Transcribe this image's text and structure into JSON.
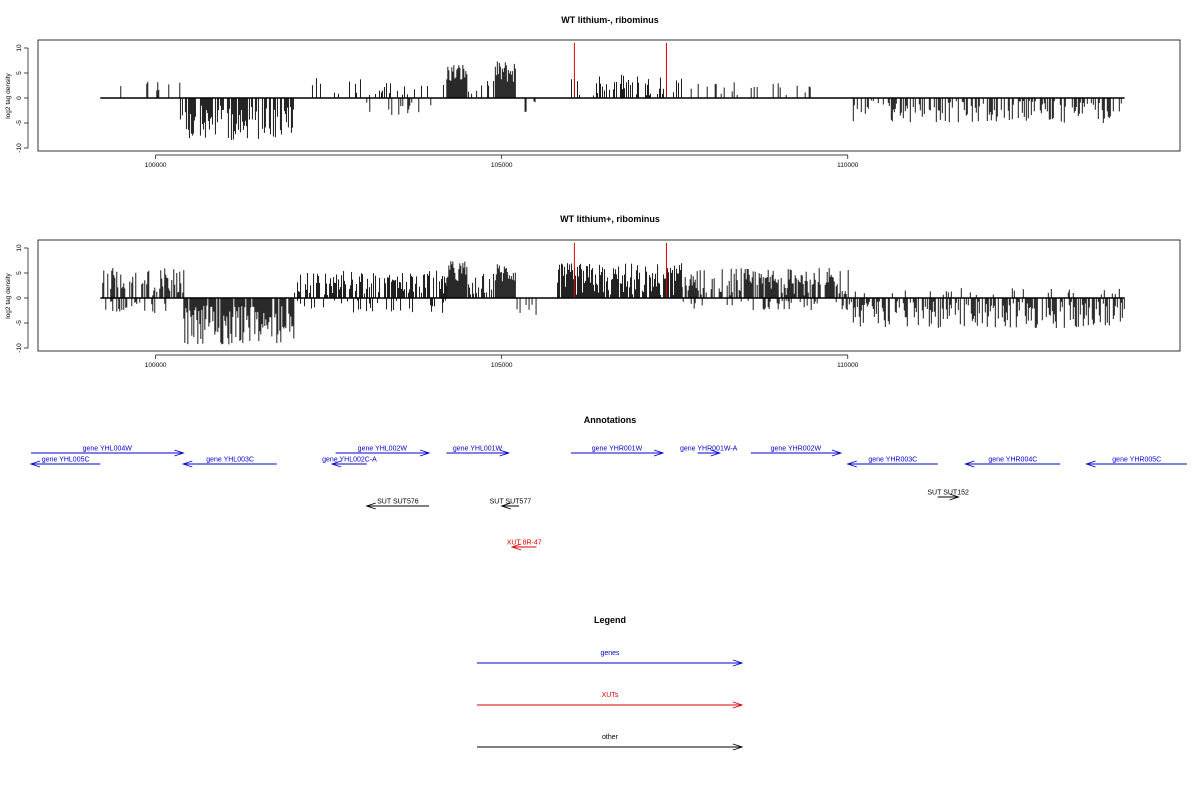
{
  "chart_data": [
    {
      "type": "bar",
      "title": "WT lithium-, ribominus",
      "ylabel": "log2 tag density",
      "xlim": [
        98300,
        114800
      ],
      "ylim": [
        -10,
        12
      ],
      "yticks": [
        -10,
        -5,
        0,
        5,
        10
      ],
      "xticks": [
        100000,
        105000,
        110000
      ],
      "grid": false,
      "segments": [
        {
          "from": 99200,
          "to": 100350,
          "min": 0.5,
          "max": 4.5,
          "density": 0.15,
          "sign": 1
        },
        {
          "from": 100350,
          "to": 102000,
          "min": 1.5,
          "max": 8.5,
          "density": 0.7,
          "sign": -1
        },
        {
          "from": 102200,
          "to": 104200,
          "min": 0.5,
          "max": 4.0,
          "density": 0.2,
          "sign": 1
        },
        {
          "from": 103000,
          "to": 104000,
          "min": 0.5,
          "max": 3.5,
          "density": 0.12,
          "sign": -1
        },
        {
          "from": 104200,
          "to": 104500,
          "min": 3.0,
          "max": 7.0,
          "density": 1.0,
          "sign": 1
        },
        {
          "from": 104500,
          "to": 104900,
          "min": 0.5,
          "max": 3.5,
          "density": 0.35,
          "sign": 1
        },
        {
          "from": 104900,
          "to": 105200,
          "min": 3.0,
          "max": 7.5,
          "density": 1.0,
          "sign": 1
        },
        {
          "from": 105200,
          "to": 105500,
          "min": 0.5,
          "max": 3.0,
          "density": 0.25,
          "sign": -1
        },
        {
          "from": 106000,
          "to": 107600,
          "min": 0.5,
          "max": 5.0,
          "density": 0.35,
          "sign": 1
        },
        {
          "from": 107600,
          "to": 109600,
          "min": 0.5,
          "max": 3.5,
          "density": 0.15,
          "sign": 1
        },
        {
          "from": 110000,
          "to": 114000,
          "min": 0.5,
          "max": 5.0,
          "density": 0.45,
          "sign": -1
        }
      ],
      "markers": [
        106050,
        107380
      ],
      "marker_top": 11
    },
    {
      "type": "bar",
      "title": "WT lithium+, ribominus",
      "ylabel": "log2 tag density",
      "xlim": [
        98300,
        114800
      ],
      "ylim": [
        -10,
        12
      ],
      "yticks": [
        -10,
        -5,
        0,
        5,
        10
      ],
      "xticks": [
        100000,
        105000,
        110000
      ],
      "grid": false,
      "segments": [
        {
          "from": 99200,
          "to": 100400,
          "min": 0.5,
          "max": 6.0,
          "density": 0.6,
          "sign": 1
        },
        {
          "from": 99200,
          "to": 100200,
          "min": 0.5,
          "max": 3.0,
          "density": 0.3,
          "sign": -1
        },
        {
          "from": 100400,
          "to": 102000,
          "min": 1.5,
          "max": 9.5,
          "density": 0.9,
          "sign": -1
        },
        {
          "from": 102000,
          "to": 104200,
          "min": 0.5,
          "max": 5.5,
          "density": 0.6,
          "sign": 1
        },
        {
          "from": 102000,
          "to": 104200,
          "min": 0.5,
          "max": 3.0,
          "density": 0.2,
          "sign": -1
        },
        {
          "from": 104200,
          "to": 104500,
          "min": 3.0,
          "max": 7.5,
          "density": 1.0,
          "sign": 1
        },
        {
          "from": 104500,
          "to": 104900,
          "min": 0.5,
          "max": 5.0,
          "density": 0.7,
          "sign": 1
        },
        {
          "from": 104900,
          "to": 105200,
          "min": 3.0,
          "max": 7.0,
          "density": 1.0,
          "sign": 1
        },
        {
          "from": 105200,
          "to": 105500,
          "min": 0.5,
          "max": 4.0,
          "density": 0.4,
          "sign": -1
        },
        {
          "from": 105800,
          "to": 107600,
          "min": 0.5,
          "max": 7.0,
          "density": 0.9,
          "sign": 1
        },
        {
          "from": 107600,
          "to": 110000,
          "min": 0.5,
          "max": 6.0,
          "density": 0.7,
          "sign": 1
        },
        {
          "from": 107600,
          "to": 110000,
          "min": 0.5,
          "max": 2.5,
          "density": 0.2,
          "sign": -1
        },
        {
          "from": 110000,
          "to": 114000,
          "min": 0.5,
          "max": 6.0,
          "density": 0.6,
          "sign": -1
        },
        {
          "from": 110000,
          "to": 114000,
          "min": 0.5,
          "max": 2.0,
          "density": 0.1,
          "sign": 1
        }
      ],
      "markers": [
        106050,
        107380
      ],
      "marker_top": 11
    }
  ],
  "annotations": {
    "title": "Annotations",
    "colors": {
      "gene": "#0000cc",
      "xut": "#dd0000",
      "other": "#000000"
    },
    "items": [
      {
        "label": "gene YHL005C",
        "kind": "gene",
        "start": 98200,
        "end": 99200,
        "strand": "-",
        "row": 1
      },
      {
        "label": "gene YHL004W",
        "kind": "gene",
        "start": 98200,
        "end": 100400,
        "strand": "+",
        "row": 0
      },
      {
        "label": "gene YHL003C",
        "kind": "gene",
        "start": 100400,
        "end": 101750,
        "strand": "-",
        "row": 1
      },
      {
        "label": "gene YHL002W",
        "kind": "gene",
        "start": 102600,
        "end": 103950,
        "strand": "+",
        "row": 0
      },
      {
        "label": "gene YHL002C-A",
        "kind": "gene",
        "start": 102550,
        "end": 103050,
        "strand": "-",
        "row": 1
      },
      {
        "label": "gene YHL001W",
        "kind": "gene",
        "start": 104200,
        "end": 105100,
        "strand": "+",
        "row": 0
      },
      {
        "label": "gene YHR001W",
        "kind": "gene",
        "start": 106000,
        "end": 107330,
        "strand": "+",
        "row": 0
      },
      {
        "label": "gene YHR001W-A",
        "kind": "gene",
        "start": 107830,
        "end": 108150,
        "strand": "+",
        "row": 0
      },
      {
        "label": "gene YHR002W",
        "kind": "gene",
        "start": 108600,
        "end": 109900,
        "strand": "+",
        "row": 0
      },
      {
        "label": "gene YHR003C",
        "kind": "gene",
        "start": 110000,
        "end": 111300,
        "strand": "-",
        "row": 1
      },
      {
        "label": "gene YHR004C",
        "kind": "gene",
        "start": 111700,
        "end": 113070,
        "strand": "-",
        "row": 1
      },
      {
        "label": "gene YHR005C",
        "kind": "gene",
        "start": 113450,
        "end": 114900,
        "strand": "-",
        "row": 1
      },
      {
        "label": "SUT SUT576",
        "kind": "other",
        "start": 103050,
        "end": 103950,
        "strand": "-",
        "row": 3
      },
      {
        "label": "SUT SUT577",
        "kind": "other",
        "start": 105000,
        "end": 105250,
        "strand": "-",
        "row": 3
      },
      {
        "label": "SUT SUT152",
        "kind": "other",
        "start": 111300,
        "end": 111600,
        "strand": "+",
        "row": 2
      },
      {
        "label": "XUT 8R-47",
        "kind": "xut",
        "start": 105150,
        "end": 105500,
        "strand": "-",
        "row": 4
      }
    ]
  },
  "legend": {
    "title": "Legend",
    "items": [
      {
        "label": "genes",
        "color": "#0000cc"
      },
      {
        "label": "XUTs",
        "color": "#dd0000"
      },
      {
        "label": "other",
        "color": "#000000"
      }
    ]
  }
}
